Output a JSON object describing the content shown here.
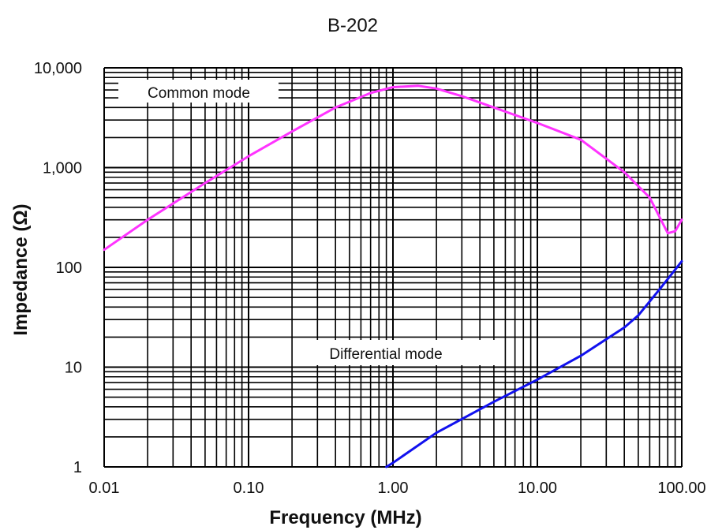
{
  "chart_data": {
    "type": "line",
    "title": "B-202",
    "xlabel": "Frequency (MHz)",
    "ylabel": "Impedance (Ω)",
    "x_scale": "log",
    "y_scale": "log",
    "xlim": [
      0.01,
      100
    ],
    "ylim": [
      1,
      10000
    ],
    "grid": true,
    "x_tick_labels": [
      "0.01",
      "0.10",
      "1.00",
      "10.00",
      "100.00"
    ],
    "y_tick_labels": [
      "1",
      "10",
      "100",
      "1,000",
      "10,000"
    ],
    "annotations": [
      {
        "text": "Common mode",
        "series": "common"
      },
      {
        "text": "Differential  mode",
        "series": "differential"
      }
    ],
    "series": [
      {
        "key": "common",
        "color": "#ff33ff",
        "x": [
          0.01,
          0.02,
          0.05,
          0.1,
          0.2,
          0.4,
          0.7,
          1.0,
          1.5,
          2.0,
          3.0,
          5.0,
          10.0,
          20.0,
          40.0,
          60.0,
          80.0,
          90.0,
          100.0
        ],
        "y": [
          150,
          300,
          700,
          1300,
          2300,
          4000,
          5600,
          6400,
          6600,
          6200,
          5200,
          4000,
          2800,
          1900,
          900,
          500,
          220,
          230,
          300
        ]
      },
      {
        "key": "differential",
        "color": "#1111ee",
        "x": [
          0.9,
          1.0,
          2.0,
          5.0,
          10.0,
          20.0,
          40.0,
          50.0,
          70.0,
          100.0
        ],
        "y": [
          1.0,
          1.1,
          2.2,
          4.5,
          7.5,
          13.0,
          25.0,
          33.0,
          60.0,
          115.0
        ]
      }
    ]
  }
}
